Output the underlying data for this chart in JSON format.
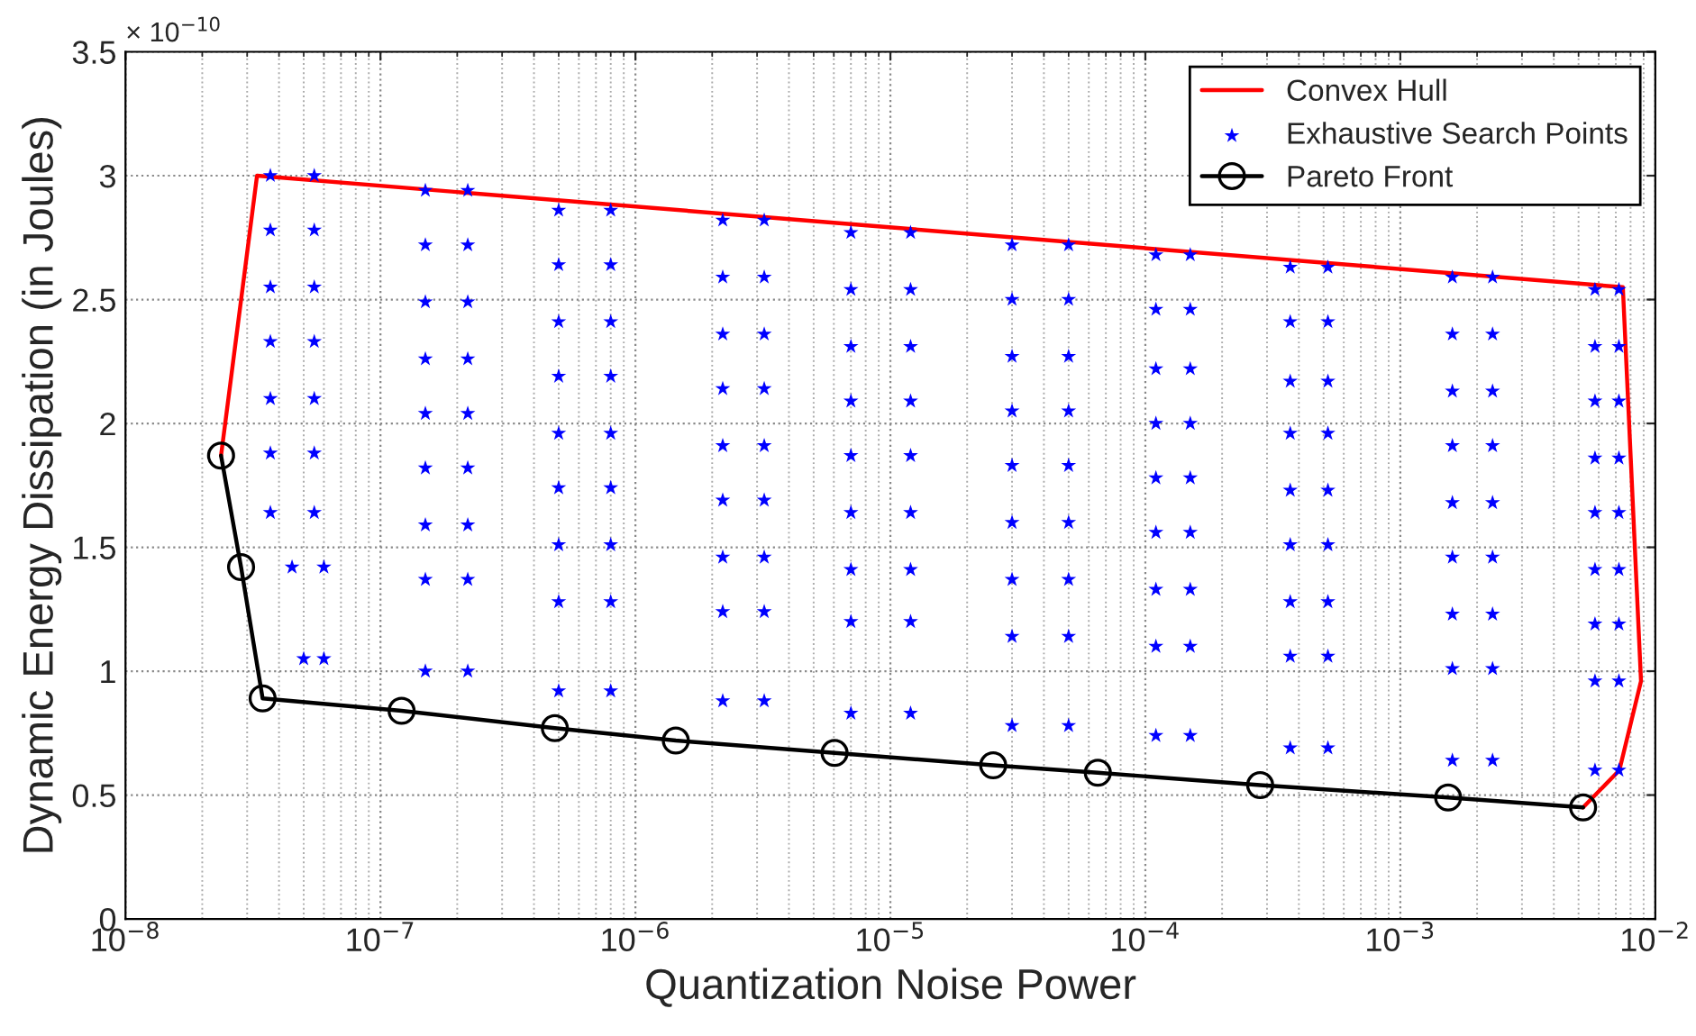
{
  "chart_data": {
    "type": "scatter",
    "xlabel": "Quantization Noise Power",
    "ylabel": "Dynamic Energy Dissipation (in Joules)",
    "log": "x",
    "grid": true,
    "legend": "top right",
    "xlim": [
      1e-08,
      0.01
    ],
    "xticks": [
      {
        "value": 1e-08,
        "label": "10$^{−8}$"
      },
      {
        "value": 1e-07,
        "label": "10$^{−7}$"
      },
      {
        "value": 1e-06,
        "label": "10$^{−6}$"
      },
      {
        "value": 1e-05,
        "label": "10$^{−5}$"
      },
      {
        "value": 0.0001,
        "label": "10$^{−4}$"
      },
      {
        "value": 0.001,
        "label": "10$^{−3}$"
      },
      {
        "value": 0.01,
        "label": "10$^{−2}$"
      }
    ],
    "ylim": [
      0,
      3.5
    ],
    "yticks": [
      0,
      0.5,
      1,
      1.5,
      2,
      2.5,
      3,
      3.5
    ],
    "annotations": [
      "× 10$^{−10}$"
    ],
    "series": [
      {
        "name": "Convex Hull",
        "type": "line",
        "color": "#ff0000",
        "marker": "none",
        "x": [
          2.37e-08,
          3.28e-08,
          0.00746,
          0.00879,
          0.00723,
          0.00521
        ],
        "values": [
          1.87,
          3.0,
          2.55,
          0.96,
          0.6,
          0.45
        ]
      },
      {
        "name": "Exhaustive Search Points",
        "color": "#0000ff",
        "marker": "star",
        "x": [
          3.7e-08,
          5.5e-08,
          3.7e-08,
          5.5e-08,
          3.7e-08,
          5.5e-08,
          3.7e-08,
          5.5e-08,
          3.7e-08,
          5.5e-08,
          3.7e-08,
          5.5e-08,
          3.7e-08,
          5.5e-08,
          4.5e-08,
          6e-08,
          5e-08,
          6e-08,
          1.5e-07,
          2.2e-07,
          1.5e-07,
          2.2e-07,
          1.5e-07,
          2.2e-07,
          1.5e-07,
          2.2e-07,
          1.5e-07,
          2.2e-07,
          1.5e-07,
          2.2e-07,
          1.5e-07,
          2.2e-07,
          1.5e-07,
          2.2e-07,
          1.5e-07,
          2.2e-07,
          5e-07,
          8e-07,
          5e-07,
          8e-07,
          5e-07,
          8e-07,
          5e-07,
          8e-07,
          5e-07,
          8e-07,
          5e-07,
          8e-07,
          5e-07,
          8e-07,
          5e-07,
          8e-07,
          5e-07,
          8e-07,
          2.2e-06,
          3.2e-06,
          2.2e-06,
          3.2e-06,
          2.2e-06,
          3.2e-06,
          2.2e-06,
          3.2e-06,
          2.2e-06,
          3.2e-06,
          2.2e-06,
          3.2e-06,
          2.2e-06,
          3.2e-06,
          2.2e-06,
          3.2e-06,
          2.2e-06,
          3.2e-06,
          7e-06,
          1.2e-05,
          7e-06,
          1.2e-05,
          7e-06,
          1.2e-05,
          7e-06,
          1.2e-05,
          7e-06,
          1.2e-05,
          7e-06,
          1.2e-05,
          7e-06,
          1.2e-05,
          7e-06,
          1.2e-05,
          7e-06,
          1.2e-05,
          3e-05,
          5e-05,
          3e-05,
          5e-05,
          3e-05,
          5e-05,
          3e-05,
          5e-05,
          3e-05,
          5e-05,
          3e-05,
          5e-05,
          3e-05,
          5e-05,
          3e-05,
          5e-05,
          3e-05,
          5e-05,
          0.00011,
          0.00015,
          0.00011,
          0.00015,
          0.00011,
          0.00015,
          0.00011,
          0.00015,
          0.00011,
          0.00015,
          0.00011,
          0.00015,
          0.00011,
          0.00015,
          0.00011,
          0.00015,
          0.00011,
          0.00015,
          0.00037,
          0.00052,
          0.00037,
          0.00052,
          0.00037,
          0.00052,
          0.00037,
          0.00052,
          0.00037,
          0.00052,
          0.00037,
          0.00052,
          0.00037,
          0.00052,
          0.00037,
          0.00052,
          0.00037,
          0.00052,
          0.0016,
          0.0023,
          0.0016,
          0.0023,
          0.0016,
          0.0023,
          0.0016,
          0.0023,
          0.0016,
          0.0023,
          0.0016,
          0.0023,
          0.0016,
          0.0023,
          0.0016,
          0.0023,
          0.0016,
          0.0023,
          0.0058,
          0.0072,
          0.0058,
          0.0072,
          0.0058,
          0.0072,
          0.0058,
          0.0072,
          0.0058,
          0.0072,
          0.0058,
          0.0072,
          0.0058,
          0.0072,
          0.0058,
          0.0072,
          0.0058,
          0.0072
        ],
        "values": [
          3.0,
          3.0,
          2.78,
          2.78,
          2.55,
          2.55,
          2.33,
          2.33,
          2.1,
          2.1,
          1.88,
          1.88,
          1.64,
          1.64,
          1.42,
          1.42,
          1.05,
          1.05,
          2.94,
          2.94,
          2.72,
          2.72,
          2.49,
          2.49,
          2.26,
          2.26,
          2.04,
          2.04,
          1.82,
          1.82,
          1.59,
          1.59,
          1.37,
          1.37,
          1.0,
          1.0,
          2.86,
          2.86,
          2.64,
          2.64,
          2.41,
          2.41,
          2.19,
          2.19,
          1.96,
          1.96,
          1.74,
          1.74,
          1.51,
          1.51,
          1.28,
          1.28,
          0.92,
          0.92,
          2.82,
          2.82,
          2.59,
          2.59,
          2.36,
          2.36,
          2.14,
          2.14,
          1.91,
          1.91,
          1.69,
          1.69,
          1.46,
          1.46,
          1.24,
          1.24,
          0.88,
          0.88,
          2.77,
          2.77,
          2.54,
          2.54,
          2.31,
          2.31,
          2.09,
          2.09,
          1.87,
          1.87,
          1.64,
          1.64,
          1.41,
          1.41,
          1.2,
          1.2,
          0.83,
          0.83,
          2.72,
          2.72,
          2.5,
          2.5,
          2.27,
          2.27,
          2.05,
          2.05,
          1.83,
          1.83,
          1.6,
          1.6,
          1.37,
          1.37,
          1.14,
          1.14,
          0.78,
          0.78,
          2.68,
          2.68,
          2.46,
          2.46,
          2.22,
          2.22,
          2.0,
          2.0,
          1.78,
          1.78,
          1.56,
          1.56,
          1.33,
          1.33,
          1.1,
          1.1,
          0.74,
          0.74,
          2.63,
          2.63,
          2.41,
          2.41,
          2.17,
          2.17,
          1.96,
          1.96,
          1.73,
          1.73,
          1.51,
          1.51,
          1.28,
          1.28,
          1.06,
          1.06,
          0.69,
          0.69,
          2.59,
          2.59,
          2.36,
          2.36,
          2.13,
          2.13,
          1.91,
          1.91,
          1.68,
          1.68,
          1.46,
          1.46,
          1.23,
          1.23,
          1.01,
          1.01,
          0.64,
          0.64,
          2.54,
          2.54,
          2.31,
          2.31,
          2.09,
          2.09,
          1.86,
          1.86,
          1.64,
          1.64,
          1.41,
          1.41,
          1.19,
          1.19,
          0.96,
          0.96,
          0.6,
          0.6
        ]
      },
      {
        "name": "Pareto Front",
        "type": "line",
        "color": "#000000",
        "marker": "circle",
        "x": [
          2.37e-08,
          2.84e-08,
          3.45e-08,
          1.21e-07,
          4.83e-07,
          1.44e-06,
          6.04e-06,
          2.53e-05,
          6.51e-05,
          0.000282,
          0.00154,
          0.00521
        ],
        "values": [
          1.87,
          1.42,
          0.89,
          0.84,
          0.77,
          0.72,
          0.67,
          0.62,
          0.59,
          0.54,
          0.49,
          0.45
        ]
      }
    ]
  }
}
